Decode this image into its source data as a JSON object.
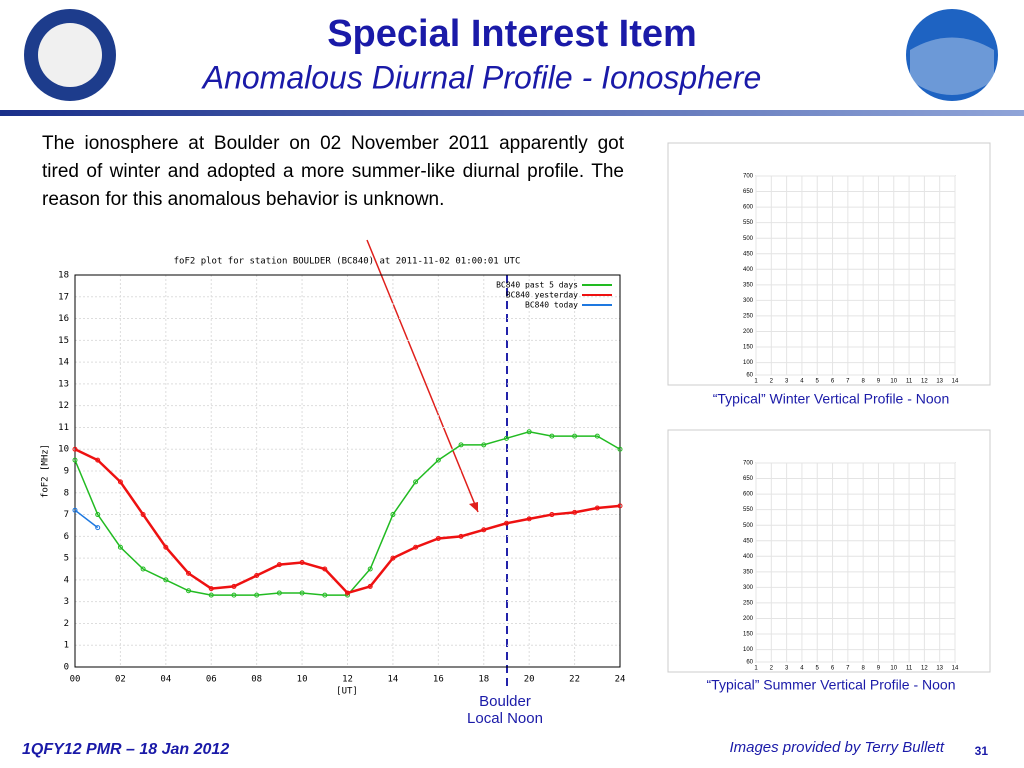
{
  "header": {
    "title": "Special Interest Item",
    "subtitle": "Anomalous Diurnal Profile - Ionosphere"
  },
  "body_text": "The ionosphere at Boulder on 02 November 2011 apparently got tired of winter and adopted a more summer-like diurnal profile. The reason for this anomalous behavior is unknown.",
  "chart_data": {
    "type": "line",
    "title": "foF2 plot for station BOULDER (BC840) at 2011-11-02 01:00:01 UTC",
    "x_label": "[UT]",
    "y_label": "foF2 [MHz]",
    "x": [
      0,
      1,
      2,
      3,
      4,
      5,
      6,
      7,
      8,
      9,
      10,
      11,
      12,
      13,
      14,
      15,
      16,
      17,
      18,
      19,
      20,
      21,
      22,
      23,
      24
    ],
    "series": [
      {
        "name": "BC840 past 5 days",
        "color": "#22bb22",
        "values": [
          9.5,
          7,
          5.5,
          4.5,
          4,
          3.5,
          3.3,
          3.3,
          3.3,
          3.4,
          3.4,
          3.3,
          3.3,
          4.5,
          7,
          8.5,
          9.5,
          10.2,
          10.2,
          10.5,
          10.8,
          10.6,
          10.6,
          10.6,
          10
        ]
      },
      {
        "name": "BC840 yesterday",
        "color": "#ee1111",
        "values": [
          10,
          9.5,
          8.5,
          7,
          5.5,
          4.3,
          3.6,
          3.7,
          4.2,
          4.7,
          4.8,
          4.5,
          3.4,
          3.7,
          5,
          5.5,
          5.9,
          6,
          6.3,
          6.6,
          6.8,
          7,
          7.1,
          7.3,
          7.4
        ]
      },
      {
        "name": "BC840 today",
        "color": "#1e78e0",
        "values": [
          7.2,
          6.4,
          null,
          null,
          null,
          null,
          null,
          null,
          null,
          null,
          null,
          null,
          null,
          null,
          null,
          null,
          null,
          null,
          null,
          null,
          null,
          null,
          null,
          null,
          null
        ]
      }
    ],
    "xlim": [
      0,
      24
    ],
    "ylim": [
      0,
      18
    ],
    "xticks": [
      {
        "value": 0,
        "label": "00"
      },
      {
        "value": 2,
        "label": "02"
      },
      {
        "value": 4,
        "label": "04"
      },
      {
        "value": 6,
        "label": "06"
      },
      {
        "value": 8,
        "label": "08"
      },
      10,
      12,
      14,
      16,
      18,
      20,
      22,
      24
    ],
    "yticks": [
      0,
      1,
      2,
      3,
      4,
      5,
      6,
      7,
      8,
      9,
      10,
      11,
      12,
      13,
      14,
      15,
      16,
      17,
      18
    ],
    "annotation": [
      "Boulder",
      "Local Noon"
    ]
  },
  "ionograms": [
    {
      "caption": "“Typical” Winter Vertical Profile - Noon",
      "ylim": [
        60,
        700
      ],
      "yticks": [
        60,
        100,
        150,
        200,
        250,
        300,
        350,
        400,
        450,
        500,
        550,
        600,
        650,
        700
      ],
      "xlim": [
        1,
        14
      ],
      "xticks": [
        1,
        2,
        3,
        4,
        5,
        6,
        7,
        8,
        9,
        10,
        11,
        12,
        13,
        14
      ]
    },
    {
      "caption": "“Typical” Summer Vertical Profile - Noon",
      "ylim": [
        60,
        700
      ],
      "yticks": [
        60,
        100,
        150,
        200,
        250,
        300,
        350,
        400,
        450,
        500,
        550,
        600,
        650,
        700
      ],
      "xlim": [
        1,
        14
      ],
      "xticks": [
        1,
        2,
        3,
        4,
        5,
        6,
        7,
        8,
        9,
        10,
        11,
        12,
        13,
        14
      ]
    }
  ],
  "footer": {
    "left": "1QFY12 PMR – 18 Jan 2012",
    "credit": "Images provided by Terry Bullett",
    "page": "31"
  }
}
